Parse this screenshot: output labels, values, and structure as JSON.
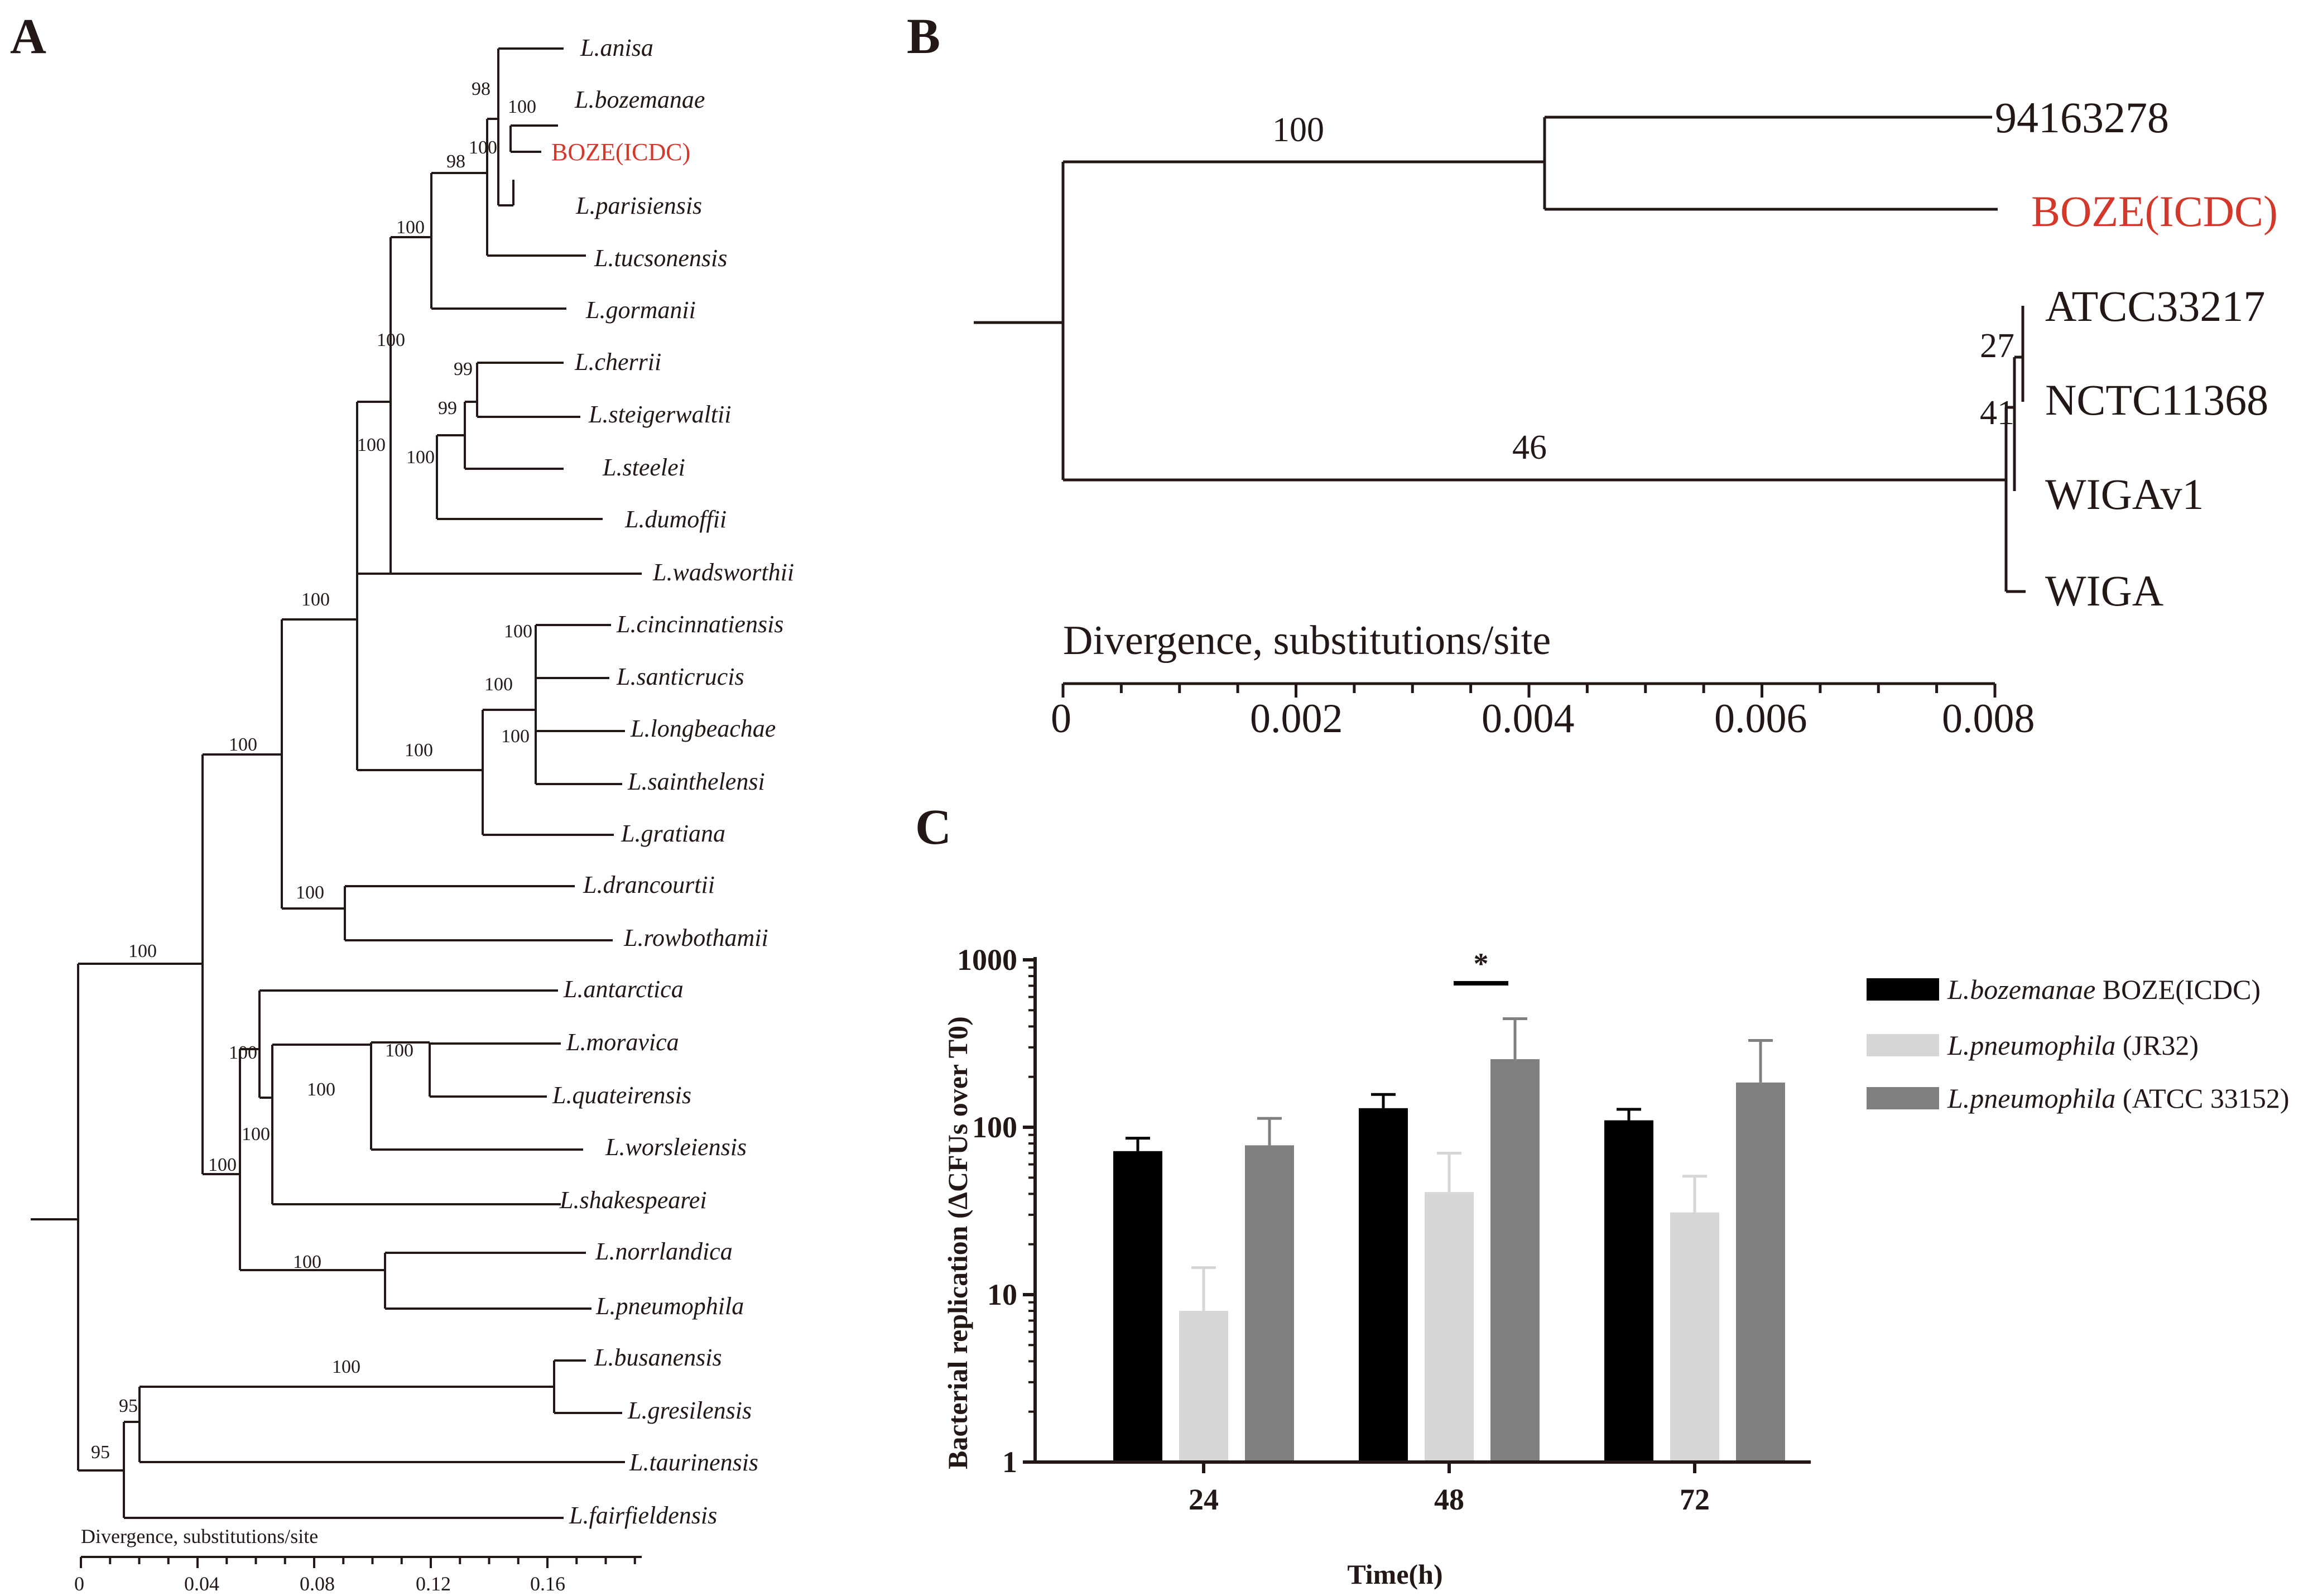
{
  "panels": {
    "a": "A",
    "b": "B",
    "c": "C"
  },
  "colors": {
    "text": "#231815",
    "highlight": "#d4382a",
    "bar_black": "#000000",
    "bar_light": "#d6d6d6",
    "bar_gray": "#808080"
  },
  "tree_a": {
    "taxa": [
      "L.anisa",
      "L.bozemanae",
      "BOZE(ICDC)",
      "L.parisiensis",
      "L.tucsonensis",
      "L.gormanii",
      "L.cherrii",
      "L.steigerwaltii",
      "L.steelei",
      "L.dumoffii",
      "L.wadsworthii",
      "L.cincinnatiensis",
      "L.santicrucis",
      "L.longbeachae",
      "L.sainthelensi",
      "L.gratiana",
      "L.drancourtii",
      "L.rowbothamii",
      "L.antarctica",
      "L.moravica",
      "L.quateirensis",
      "L.worsleiensis",
      "L.shakespearei",
      "L.norrlandica",
      "L.pneumophila",
      "L.busanensis",
      "L.gresilensis",
      "L.taurinensis",
      "L.fairfieldensis"
    ],
    "bootstraps": [
      "98",
      "100",
      "100",
      "98",
      "100",
      "100",
      "99",
      "99",
      "100",
      "100",
      "100",
      "100",
      "100",
      "100",
      "100",
      "100",
      "100",
      "100",
      "100",
      "100",
      "100",
      "100",
      "100",
      "100",
      "100",
      "95",
      "95"
    ],
    "scale_title": "Divergence, substitutions/site",
    "scale_ticks": [
      "0",
      "0.04",
      "0.08",
      "0.12",
      "0.16"
    ]
  },
  "tree_b": {
    "taxa": [
      "94163278",
      "BOZE(ICDC)",
      "ATCC33217",
      "NCTC11368",
      "WIGAv1",
      "WIGA"
    ],
    "bootstraps": [
      "100",
      "46",
      "27",
      "41"
    ],
    "scale_title": "Divergence, substitutions/site",
    "scale_ticks": [
      "0",
      "0.002",
      "0.004",
      "0.006",
      "0.008"
    ]
  },
  "chart_data": {
    "type": "bar",
    "ylabel": "Bacterial replication (ΔCFUs over T0)",
    "xlabel": "Time(h)",
    "yscale": "log",
    "ylim": [
      1,
      1000
    ],
    "yticks": [
      "1",
      "10",
      "100",
      "1000"
    ],
    "categories": [
      "24",
      "48",
      "72"
    ],
    "series": [
      {
        "name_italic": "L.bozemanae",
        "name_plain": " BOZE(ICDC)",
        "color": "#000000",
        "values": [
          72,
          130,
          110
        ],
        "errors": [
          86,
          157,
          128
        ]
      },
      {
        "name_italic": "L.pneumophila",
        "name_plain": " (JR32)",
        "color": "#d6d6d6",
        "values": [
          8,
          41,
          31
        ],
        "errors": [
          14.5,
          70,
          51
        ]
      },
      {
        "name_italic": "L.pneumophila",
        "name_plain": " (ATCC 33152)",
        "color": "#808080",
        "values": [
          78,
          255,
          185
        ],
        "errors": [
          113,
          445,
          330
        ]
      }
    ],
    "significance": {
      "label": "*",
      "category": "48"
    }
  }
}
